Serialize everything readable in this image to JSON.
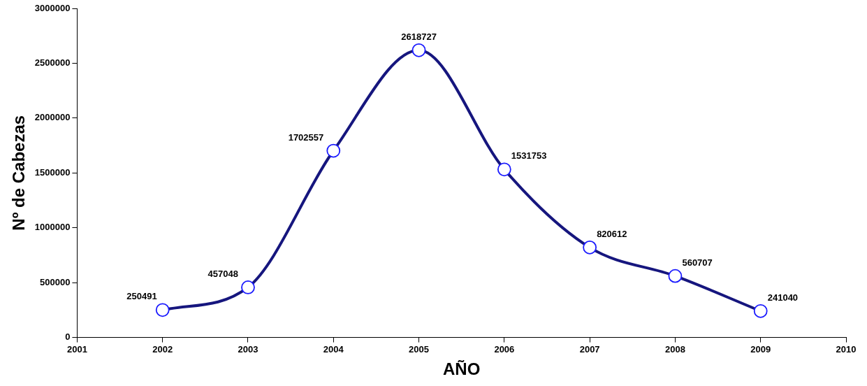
{
  "chart_data": {
    "type": "line",
    "xlabel": "AÑO",
    "ylabel": "Nº de Cabezas",
    "x": [
      2002,
      2003,
      2004,
      2005,
      2006,
      2007,
      2008,
      2009
    ],
    "series": [
      {
        "color": "#16167e",
        "values": [
          250491,
          457048,
          1702557,
          2618727,
          1531753,
          820612,
          560707,
          241040
        ]
      }
    ],
    "xlim": [
      2001,
      2010
    ],
    "xticks": [
      2001,
      2002,
      2003,
      2004,
      2005,
      2006,
      2007,
      2008,
      2009,
      2010
    ],
    "ylim": [
      0,
      3000000
    ],
    "yticks": [
      0,
      500000,
      1000000,
      1500000,
      2000000,
      2500000,
      3000000
    ],
    "grid": false,
    "legend": false,
    "marker": "circle",
    "line_style": "solid",
    "data_labels": true
  }
}
